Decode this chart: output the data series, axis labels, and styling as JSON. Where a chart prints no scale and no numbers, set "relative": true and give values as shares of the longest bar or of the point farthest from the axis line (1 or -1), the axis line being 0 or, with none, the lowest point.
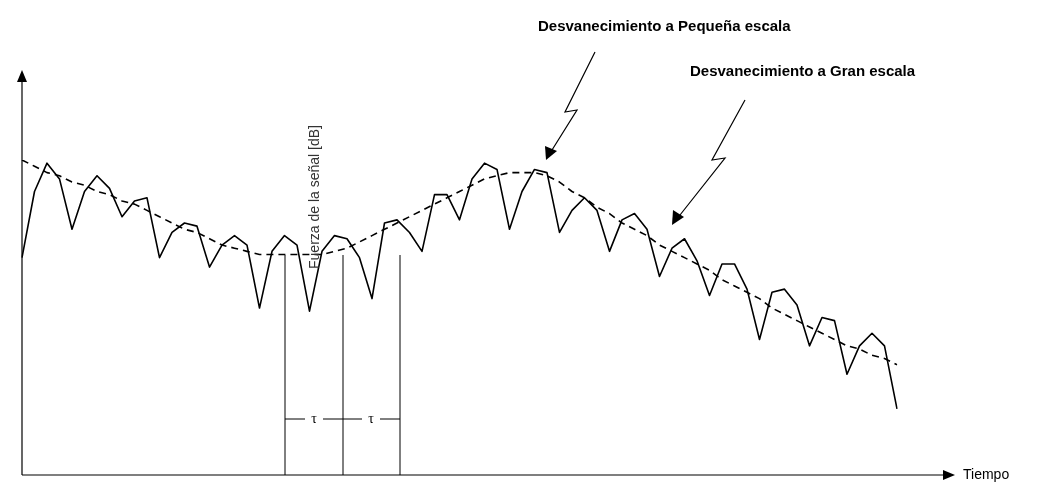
{
  "chart_data": {
    "type": "line",
    "relative": true,
    "tick_labels": false,
    "legend": false,
    "marker": "none",
    "xlabel": "Tiempo",
    "ylabel": "Fuerza de la señal [dB]",
    "annotations": [
      "τ",
      "τ",
      "Desvanecimiento a Pequeña escala",
      "Desvanecimiento a Gran escala"
    ],
    "categories": [
      null,
      null,
      null,
      null,
      null,
      null,
      null,
      null,
      null,
      null,
      null,
      null,
      null,
      null,
      null,
      null,
      null,
      null,
      null,
      null,
      null,
      null,
      null,
      null,
      null,
      null,
      null,
      null,
      null,
      null,
      null,
      null,
      null,
      null,
      null,
      null,
      null,
      null,
      null,
      null,
      null,
      null,
      null,
      null,
      null,
      null,
      null,
      null,
      null,
      null,
      null,
      null,
      null,
      null,
      null,
      null,
      null,
      null,
      null,
      null,
      null,
      null,
      null,
      null,
      null,
      null,
      null,
      null,
      null,
      null,
      null
    ],
    "series": [
      {
        "color": "#000000",
        "line_style": "solid",
        "values": [
          0.69,
          0.9,
          0.99,
          0.94,
          0.78,
          0.9,
          0.95,
          0.91,
          0.82,
          0.87,
          0.88,
          0.69,
          0.77,
          0.8,
          0.79,
          0.66,
          0.73,
          0.76,
          0.73,
          0.53,
          0.71,
          0.76,
          0.73,
          0.52,
          0.71,
          0.76,
          0.75,
          0.69,
          0.56,
          0.8,
          0.81,
          0.77,
          0.71,
          0.89,
          0.89,
          0.81,
          0.94,
          0.99,
          0.97,
          0.78,
          0.9,
          0.97,
          0.96,
          0.77,
          0.84,
          0.88,
          0.84,
          0.71,
          0.81,
          0.83,
          0.78,
          0.63,
          0.72,
          0.75,
          0.68,
          0.57,
          0.67,
          0.67,
          0.59,
          0.43,
          0.58,
          0.59,
          0.54,
          0.41,
          0.5,
          0.49,
          0.32,
          0.41,
          0.45,
          0.41,
          0.21
        ]
      },
      {
        "color": "#000000",
        "line_style": "dashed",
        "values": [
          1.0,
          0.98,
          0.96,
          0.95,
          0.93,
          0.92,
          0.9,
          0.89,
          0.87,
          0.86,
          0.84,
          0.82,
          0.8,
          0.78,
          0.77,
          0.75,
          0.73,
          0.72,
          0.71,
          0.7,
          0.7,
          0.7,
          0.7,
          0.7,
          0.7,
          0.71,
          0.72,
          0.74,
          0.76,
          0.78,
          0.8,
          0.82,
          0.84,
          0.86,
          0.88,
          0.9,
          0.92,
          0.94,
          0.95,
          0.96,
          0.96,
          0.96,
          0.95,
          0.93,
          0.9,
          0.88,
          0.85,
          0.83,
          0.8,
          0.78,
          0.76,
          0.73,
          0.71,
          0.69,
          0.67,
          0.65,
          0.62,
          0.6,
          0.58,
          0.56,
          0.53,
          0.51,
          0.49,
          0.47,
          0.45,
          0.43,
          0.41,
          0.4,
          0.38,
          0.37,
          0.35
        ]
      }
    ]
  }
}
